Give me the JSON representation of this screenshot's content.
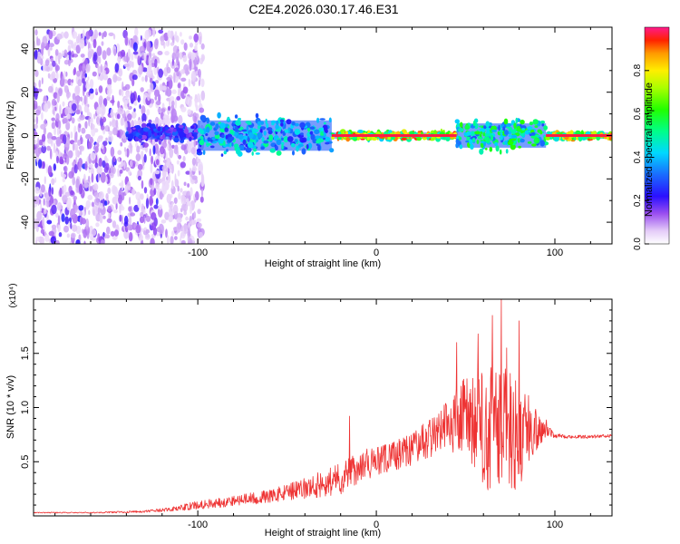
{
  "title": "C2E4.2026.030.17.46.E31",
  "chart_data": [
    {
      "type": "heatmap",
      "xlabel": "Height of straight line (km)",
      "ylabel": "Frequency (Hz)",
      "xlim": [
        -192,
        132
      ],
      "ylim": [
        -50,
        50
      ],
      "xticks": [
        -100,
        0,
        100
      ],
      "yticks": [
        -40,
        -20,
        0,
        20,
        40
      ],
      "colorbar": {
        "label": "Normalized spectral amplitude",
        "range": [
          0,
          1
        ],
        "ticks": [
          0.0,
          0.2,
          0.4,
          0.6,
          0.8
        ]
      },
      "regions": [
        {
          "x": [
            -192,
            -105
          ],
          "freq": [
            -50,
            48
          ],
          "amplitude": 0.1,
          "description": "scattered low-amplitude noise"
        },
        {
          "x": [
            -140,
            -100
          ],
          "freq": [
            -3,
            5
          ],
          "amplitude": 0.3
        },
        {
          "x": [
            -100,
            -25
          ],
          "freq": [
            -10,
            10
          ],
          "amplitude": 0.5
        },
        {
          "x": [
            -25,
            45
          ],
          "freq": [
            -2,
            2
          ],
          "amplitude": 0.9
        },
        {
          "x": [
            45,
            95
          ],
          "freq": [
            -8,
            8
          ],
          "amplitude": 0.6
        },
        {
          "x": [
            95,
            132
          ],
          "freq": [
            -2,
            2
          ],
          "amplitude": 0.9
        }
      ]
    },
    {
      "type": "line",
      "xlabel": "Height of straight line (km)",
      "ylabel": "SNR (10 * v/v)",
      "scale_label": "(x10⁴)",
      "xlim": [
        -192,
        132
      ],
      "ylim": [
        0,
        2.0
      ],
      "xticks": [
        -100,
        0,
        100
      ],
      "yticks": [
        0.5,
        1.0,
        1.5
      ],
      "color": "#ee3333",
      "envelope": {
        "x": [
          -192,
          -160,
          -130,
          -115,
          -100,
          -80,
          -60,
          -40,
          -20,
          -10,
          0,
          10,
          20,
          30,
          40,
          50,
          60,
          70,
          80,
          90,
          95,
          100,
          110,
          120,
          132
        ],
        "mean": [
          0.03,
          0.03,
          0.04,
          0.06,
          0.1,
          0.14,
          0.18,
          0.25,
          0.35,
          0.45,
          0.5,
          0.55,
          0.62,
          0.72,
          0.85,
          0.9,
          0.8,
          0.8,
          0.75,
          0.8,
          0.82,
          0.74,
          0.73,
          0.73,
          0.74
        ],
        "noise": [
          0.005,
          0.005,
          0.01,
          0.02,
          0.04,
          0.05,
          0.06,
          0.1,
          0.15,
          0.15,
          0.14,
          0.14,
          0.15,
          0.18,
          0.25,
          0.4,
          0.55,
          0.65,
          0.5,
          0.2,
          0.08,
          0.02,
          0.015,
          0.015,
          0.015
        ]
      },
      "peaks": [
        {
          "x": -15,
          "y": 0.92
        },
        {
          "x": 45,
          "y": 1.6
        },
        {
          "x": 57,
          "y": 1.68
        },
        {
          "x": 65,
          "y": 1.85
        },
        {
          "x": 70,
          "y": 2.0
        },
        {
          "x": 73,
          "y": 1.55
        },
        {
          "x": 80,
          "y": 1.8
        }
      ]
    }
  ]
}
